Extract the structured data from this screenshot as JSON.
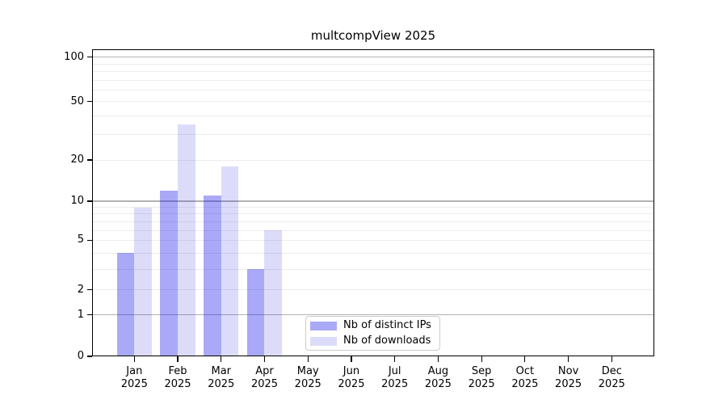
{
  "title": "multcompView 2025",
  "chart_data": {
    "type": "bar",
    "title": "multcompView 2025",
    "xlabel": "",
    "ylabel": "",
    "categories": [
      "Jan",
      "Feb",
      "Mar",
      "Apr",
      "May",
      "Jun",
      "Jul",
      "Aug",
      "Sep",
      "Oct",
      "Nov",
      "Dec"
    ],
    "year_label": "2025",
    "series": [
      {
        "name": "Nb of distinct IPs",
        "color": "rgba(10,10,232,0.35)",
        "values": [
          4,
          12,
          11,
          3,
          0,
          0,
          0,
          0,
          0,
          0,
          0,
          0
        ]
      },
      {
        "name": "Nb of downloads",
        "color": "rgba(5,5,219,0.14)",
        "values": [
          9,
          35,
          18,
          6,
          0,
          0,
          0,
          0,
          0,
          0,
          0,
          0
        ]
      }
    ],
    "yscale": "log10(1+y)",
    "ylim": [
      0,
      112
    ],
    "yticks": [
      0,
      1,
      2,
      5,
      10,
      20,
      50,
      100
    ],
    "y_major_gridlines": [
      1,
      10,
      100
    ],
    "y_minor_gridlines": [
      2,
      3,
      4,
      5,
      6,
      7,
      8,
      9,
      20,
      30,
      40,
      50,
      60,
      70,
      80,
      90
    ],
    "grid": "horizontal",
    "legend_position": "lower-center",
    "axis_color": "#000000",
    "major_grid_color": "#b2b2b2",
    "minor_grid_color": "#ececec"
  }
}
